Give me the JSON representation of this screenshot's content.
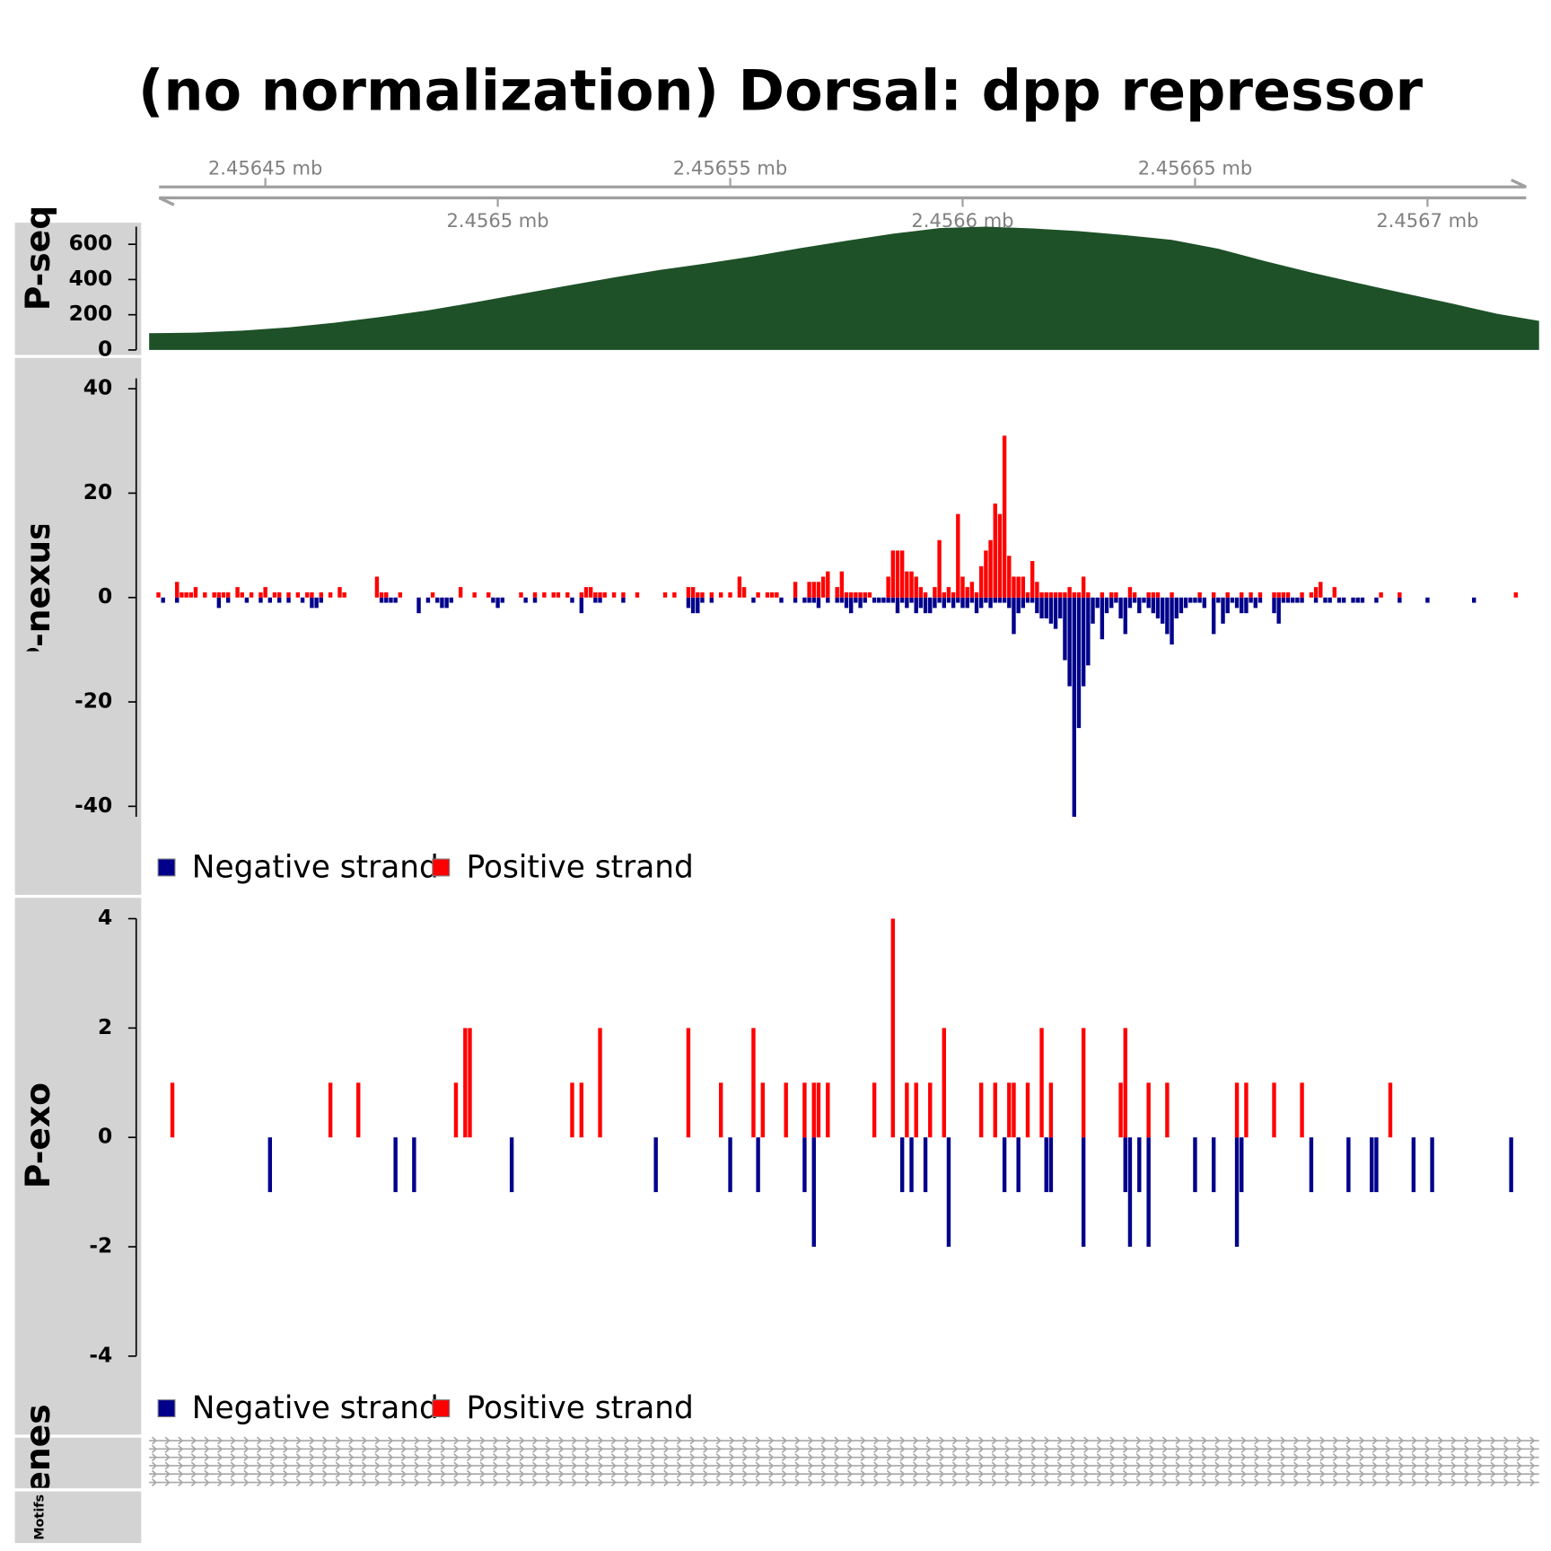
{
  "chart_data": [
    {
      "type": "genome-axis",
      "title": "(no normalization) Dorsal: dpp repressor",
      "xlim": [
        2.456425,
        2.456724
      ],
      "xticks": [
        {
          "value": 2.45645,
          "label": "2.45645 mb"
        },
        {
          "value": 2.4565,
          "label": "2.4565 mb"
        },
        {
          "value": 2.45655,
          "label": "2.45655 mb"
        },
        {
          "value": 2.4566,
          "label": "2.4566 mb"
        },
        {
          "value": 2.45665,
          "label": "2.45665 mb"
        },
        {
          "value": 2.4567,
          "label": "2.4567 mb"
        }
      ],
      "color": "#a0a0a0"
    },
    {
      "type": "area",
      "ylabel": "ChIP-seq",
      "color": "#1e5128",
      "ylim": [
        0,
        700
      ],
      "yticks": [
        0,
        200,
        400,
        600
      ],
      "x": [
        2.456425,
        2.456435,
        2.456445,
        2.456455,
        2.456465,
        2.456475,
        2.456485,
        2.456495,
        2.456505,
        2.456515,
        2.456525,
        2.456535,
        2.456545,
        2.456555,
        2.456565,
        2.456575,
        2.456585,
        2.456595,
        2.456605,
        2.456615,
        2.456625,
        2.456635,
        2.456645,
        2.456655,
        2.456665,
        2.456675,
        2.456685,
        2.456695,
        2.456705,
        2.456715,
        2.456724
      ],
      "values": [
        95,
        98,
        110,
        128,
        155,
        188,
        225,
        270,
        318,
        365,
        412,
        455,
        492,
        532,
        578,
        620,
        660,
        692,
        700,
        690,
        675,
        652,
        625,
        575,
        505,
        440,
        380,
        322,
        265,
        205,
        165
      ]
    },
    {
      "type": "stranded-bar",
      "ylabel": "ChIP-nexus",
      "ylim": [
        -42,
        42
      ],
      "yticks": [
        -40,
        -20,
        0,
        20,
        40
      ],
      "series": [
        {
          "name": "Negative strand",
          "color": "#00008b",
          "x": [
            2.456428,
            2.456431,
            2.45644,
            2.456442,
            2.456446,
            2.456449,
            2.456451,
            2.456453,
            2.456455,
            2.456458,
            2.45646,
            2.456461,
            2.456462,
            2.456475,
            2.456476,
            2.456477,
            2.456478,
            2.456483,
            2.456485,
            2.456487,
            2.456488,
            2.456489,
            2.45649,
            2.456499,
            2.4565,
            2.456501,
            2.456506,
            2.456508,
            2.456516,
            2.456518,
            2.456521,
            2.456522,
            2.456527,
            2.456541,
            2.456542,
            2.456543,
            2.456544,
            2.456546,
            2.456555,
            2.456561,
            2.456564,
            2.456566,
            2.456567,
            2.456568,
            2.456569,
            2.456571,
            2.456573,
            2.456574,
            2.456575,
            2.456576,
            2.456577,
            2.456578,
            2.456579,
            2.456581,
            2.456582,
            2.456583,
            2.456584,
            2.456585,
            2.456586,
            2.456587,
            2.456588,
            2.456589,
            2.45659,
            2.456591,
            2.456592,
            2.456593,
            2.456594,
            2.456595,
            2.456596,
            2.456597,
            2.456598,
            2.456599,
            2.4566,
            2.456601,
            2.456602,
            2.456603,
            2.456604,
            2.456605,
            2.456606,
            2.456607,
            2.456608,
            2.456609,
            2.45661,
            2.456611,
            2.456612,
            2.456613,
            2.456614,
            2.456615,
            2.456616,
            2.456617,
            2.456618,
            2.456619,
            2.45662,
            2.456621,
            2.456622,
            2.456623,
            2.456624,
            2.456625,
            2.456626,
            2.456627,
            2.456628,
            2.456629,
            2.45663,
            2.456631,
            2.456632,
            2.456633,
            2.456634,
            2.456635,
            2.456636,
            2.456637,
            2.456638,
            2.456639,
            2.45664,
            2.456641,
            2.456642,
            2.456643,
            2.456644,
            2.456645,
            2.456646,
            2.456647,
            2.456648,
            2.456649,
            2.45665,
            2.456651,
            2.456652,
            2.456654,
            2.456655,
            2.456656,
            2.456657,
            2.456658,
            2.456659,
            2.45666,
            2.456661,
            2.456662,
            2.456663,
            2.456664,
            2.456667,
            2.456668,
            2.456669,
            2.45667,
            2.456671,
            2.456672,
            2.456673,
            2.456676,
            2.456678,
            2.456679,
            2.456681,
            2.456682,
            2.456684,
            2.456685,
            2.456686,
            2.456689,
            2.456694,
            2.4567,
            2.45671
          ],
          "values": [
            -1,
            -1,
            -2,
            -1,
            -1,
            -1,
            -1,
            -1,
            -1,
            -1,
            -2,
            -2,
            -1,
            -1,
            -1,
            -1,
            -1,
            -3,
            -1,
            -1,
            -2,
            -2,
            -1,
            -1,
            -2,
            -1,
            -1,
            -1,
            -1,
            -3,
            -1,
            -1,
            -1,
            -2,
            -3,
            -3,
            -1,
            -1,
            -1,
            -1,
            -1,
            -1,
            -1,
            -1,
            -2,
            -1,
            -1,
            -1,
            -2,
            -3,
            -1,
            -2,
            -1,
            -1,
            -1,
            -1,
            -1,
            -1,
            -3,
            -1,
            -2,
            -1,
            -3,
            -2,
            -3,
            -3,
            -2,
            -1,
            -2,
            -1,
            -2,
            -1,
            -2,
            -2,
            -1,
            -3,
            -2,
            -1,
            -2,
            -1,
            -1,
            -1,
            -2,
            -7,
            -3,
            -2,
            -1,
            -1,
            -3,
            -4,
            -4,
            -5,
            -6,
            -4,
            -12,
            -17,
            -42,
            -25,
            -17,
            -13,
            -5,
            -2,
            -8,
            -3,
            -2,
            -1,
            -4,
            -7,
            -2,
            -1,
            -3,
            -1,
            -2,
            -3,
            -4,
            -5,
            -7,
            -9,
            -4,
            -3,
            -2,
            -1,
            -1,
            -1,
            -2,
            -7,
            -1,
            -5,
            -3,
            -1,
            -2,
            -3,
            -3,
            -1,
            -2,
            -1,
            -3,
            -5,
            -1,
            -1,
            -1,
            -1,
            -1,
            -1,
            -1,
            -1,
            -1,
            -1,
            -1,
            -1,
            -1,
            -1,
            -1,
            -1,
            -1
          ]
        },
        {
          "name": "Positive strand",
          "color": "#ff0000",
          "x": [
            2.456427,
            2.456431,
            2.456432,
            2.456433,
            2.456434,
            2.456435,
            2.456437,
            2.456439,
            2.45644,
            2.456441,
            2.456442,
            2.456444,
            2.456445,
            2.456447,
            2.456449,
            2.45645,
            2.456452,
            2.456453,
            2.456455,
            2.456457,
            2.456459,
            2.45646,
            2.456462,
            2.456464,
            2.456466,
            2.456467,
            2.456474,
            2.456475,
            2.456476,
            2.456479,
            2.456486,
            2.456492,
            2.456495,
            2.456498,
            2.456505,
            2.456508,
            2.45651,
            2.456512,
            2.456513,
            2.456515,
            2.456518,
            2.456519,
            2.45652,
            2.456521,
            2.456522,
            2.456523,
            2.456525,
            2.456527,
            2.45653,
            2.456536,
            2.456538,
            2.456541,
            2.456542,
            2.456543,
            2.456544,
            2.456546,
            2.456548,
            2.45655,
            2.456552,
            2.456553,
            2.456556,
            2.456558,
            2.456559,
            2.45656,
            2.456564,
            2.456567,
            2.456568,
            2.456569,
            2.45657,
            2.456571,
            2.456573,
            2.456574,
            2.456575,
            2.456576,
            2.456577,
            2.456578,
            2.456579,
            2.45658,
            2.456584,
            2.456585,
            2.456586,
            2.456587,
            2.456588,
            2.456589,
            2.45659,
            2.456591,
            2.456592,
            2.456594,
            2.456595,
            2.456596,
            2.456597,
            2.456598,
            2.456599,
            2.4566,
            2.456601,
            2.456602,
            2.456603,
            2.456604,
            2.456605,
            2.456606,
            2.456607,
            2.456608,
            2.456609,
            2.45661,
            2.456611,
            2.456612,
            2.456613,
            2.456614,
            2.456615,
            2.456616,
            2.456617,
            2.456618,
            2.456619,
            2.45662,
            2.456621,
            2.456622,
            2.456623,
            2.456624,
            2.456625,
            2.456626,
            2.456627,
            2.45663,
            2.456632,
            2.456633,
            2.456636,
            2.456637,
            2.45664,
            2.456641,
            2.456642,
            2.456645,
            2.456651,
            2.456654,
            2.456657,
            2.45666,
            2.456662,
            2.456664,
            2.456667,
            2.456668,
            2.456669,
            2.45667,
            2.456673,
            2.456675,
            2.456676,
            2.456677,
            2.45668,
            2.45669,
            2.456694,
            2.456719
          ],
          "values": [
            1,
            3,
            1,
            1,
            1,
            2,
            1,
            1,
            1,
            1,
            1,
            2,
            1,
            1,
            1,
            2,
            1,
            1,
            1,
            1,
            1,
            1,
            1,
            1,
            2,
            1,
            4,
            1,
            1,
            1,
            1,
            2,
            1,
            1,
            1,
            1,
            1,
            1,
            1,
            1,
            1,
            2,
            2,
            1,
            1,
            1,
            1,
            1,
            1,
            1,
            1,
            2,
            2,
            1,
            1,
            1,
            1,
            1,
            4,
            2,
            1,
            1,
            1,
            1,
            3,
            3,
            3,
            3,
            4,
            5,
            2,
            5,
            1,
            1,
            1,
            1,
            1,
            1,
            4,
            9,
            9,
            9,
            5,
            5,
            4,
            2,
            1,
            2,
            11,
            1,
            2,
            1,
            16,
            4,
            2,
            3,
            1,
            6,
            9,
            11,
            18,
            16,
            31,
            8,
            4,
            4,
            4,
            1,
            7,
            3,
            1,
            1,
            1,
            1,
            1,
            1,
            2,
            1,
            1,
            4,
            1,
            1,
            1,
            1,
            2,
            1,
            1,
            1,
            1,
            1,
            1,
            1,
            1,
            1,
            1,
            1,
            1,
            1,
            1,
            1,
            1,
            1,
            2,
            3,
            2,
            1,
            1,
            1
          ]
        }
      ]
    },
    {
      "type": "stranded-bar",
      "ylabel": "ChIP-exo",
      "ylim": [
        -4,
        4
      ],
      "yticks": [
        -4,
        -2,
        0,
        2,
        4
      ],
      "series": [
        {
          "name": "Negative strand",
          "color": "#00008b",
          "x": [
            2.456451,
            2.456478,
            2.456482,
            2.456503,
            2.456534,
            2.45655,
            2.456556,
            2.456566,
            2.456568,
            2.456587,
            2.456589,
            2.456592,
            2.456597,
            2.456609,
            2.456612,
            2.456618,
            2.456619,
            2.456626,
            2.456635,
            2.456636,
            2.456638,
            2.45664,
            2.45665,
            2.456654,
            2.456659,
            2.45666,
            2.456675,
            2.456683,
            2.456688,
            2.456689,
            2.456697,
            2.456701,
            2.456718
          ],
          "values": [
            -1,
            -1,
            -1,
            -1,
            -1,
            -1,
            -1,
            -1,
            -2,
            -1,
            -1,
            -1,
            -2,
            -1,
            -1,
            -1,
            -1,
            -2,
            -1,
            -2,
            -1,
            -2,
            -1,
            -1,
            -2,
            -1,
            -1,
            -1,
            -1,
            -1,
            -1,
            -1,
            -1
          ]
        },
        {
          "name": "Positive strand",
          "color": "#ff0000",
          "x": [
            2.45643,
            2.456464,
            2.45647,
            2.456491,
            2.456493,
            2.456494,
            2.456516,
            2.456518,
            2.456522,
            2.456541,
            2.456548,
            2.456555,
            2.456557,
            2.456562,
            2.456566,
            2.456568,
            2.456569,
            2.456571,
            2.456581,
            2.456585,
            2.456588,
            2.45659,
            2.456593,
            2.456596,
            2.456604,
            2.456607,
            2.45661,
            2.456611,
            2.456614,
            2.456617,
            2.456619,
            2.456626,
            2.456634,
            2.456635,
            2.45664,
            2.456644,
            2.456659,
            2.456661,
            2.456667,
            2.456673,
            2.456692
          ],
          "values": [
            1,
            1,
            1,
            1,
            2,
            2,
            1,
            1,
            2,
            2,
            1,
            2,
            1,
            1,
            1,
            1,
            1,
            1,
            1,
            4,
            1,
            1,
            1,
            2,
            1,
            1,
            1,
            1,
            1,
            2,
            1,
            2,
            1,
            2,
            1,
            1,
            1,
            1,
            1,
            1,
            1
          ]
        }
      ]
    },
    {
      "type": "gene-track",
      "ylabel": "Genes"
    },
    {
      "type": "motif-track",
      "ylabel": "Motifs"
    }
  ]
}
